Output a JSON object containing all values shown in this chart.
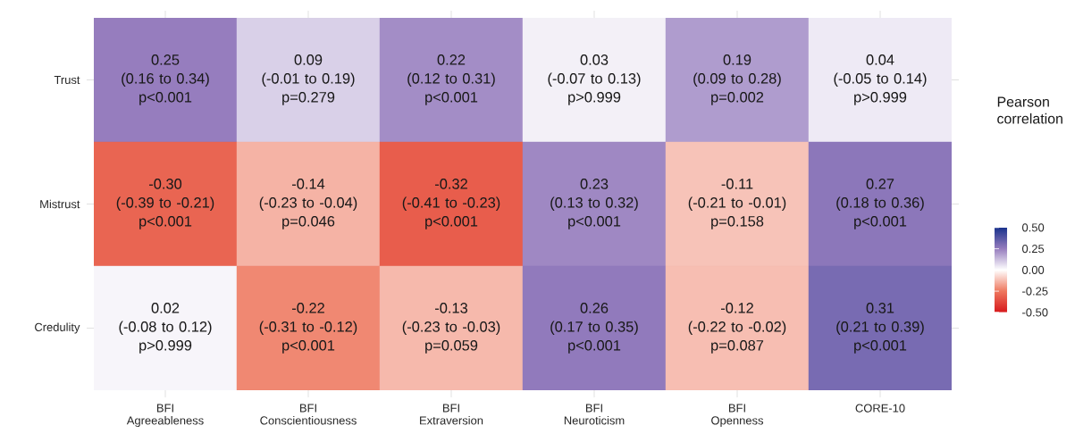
{
  "chart_data": {
    "type": "heatmap",
    "clabel": "Pearson\ncorrelation",
    "categories": [
      "BFI\nAgreeableness",
      "BFI\nConscientiousness",
      "BFI\nExtraversion",
      "BFI\nNeuroticism",
      "BFI\nOpenness",
      "CORE-10"
    ],
    "y_categories": [
      "Trust",
      "Mistrust",
      "Credulity"
    ],
    "cells": [
      [
        0.25,
        0.09,
        0.22,
        0.03,
        0.19,
        0.04
      ],
      [
        -0.3,
        -0.14,
        -0.32,
        0.23,
        -0.11,
        0.27
      ],
      [
        0.02,
        -0.22,
        -0.13,
        0.26,
        -0.12,
        0.31
      ]
    ],
    "cell_labels": [
      [
        "0.25\n(0.16 to 0.34)\np<0.001",
        "0.09\n(-0.01 to 0.19)\np=0.279",
        "0.22\n(0.12 to 0.31)\np<0.001",
        "0.03\n(-0.07 to 0.13)\np>0.999",
        "0.19\n(0.09 to 0.28)\np=0.002",
        "0.04\n(-0.05 to 0.14)\np>0.999"
      ],
      [
        "-0.30\n(-0.39 to -0.21)\np<0.001",
        "-0.14\n(-0.23 to -0.04)\np=0.046",
        "-0.32\n(-0.41 to -0.23)\np<0.001",
        "0.23\n(0.13 to 0.32)\np<0.001",
        "-0.11\n(-0.21 to -0.01)\np=0.158",
        "0.27\n(0.18 to 0.36)\np<0.001"
      ],
      [
        "0.02\n(-0.08 to 0.12)\np>0.999",
        "-0.22\n(-0.31 to -0.12)\np<0.001",
        "-0.13\n(-0.23 to -0.03)\np=0.059",
        "0.26\n(0.17 to 0.35)\np<0.001",
        "-0.12\n(-0.22 to -0.02)\np=0.087",
        "0.31\n(0.21 to 0.39)\np<0.001"
      ]
    ],
    "clim": [
      -0.5,
      0.5
    ],
    "cticks": [
      {
        "value": 0.5,
        "label": "0.50"
      },
      {
        "value": 0.25,
        "label": "0.25"
      },
      {
        "value": 0,
        "label": "0.00"
      },
      {
        "value": -0.25,
        "label": "-0.25"
      },
      {
        "value": -0.5,
        "label": "-0.50"
      }
    ]
  }
}
